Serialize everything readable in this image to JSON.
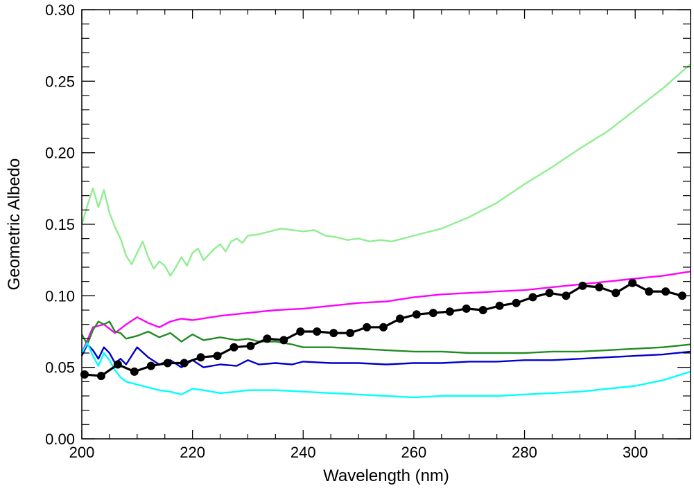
{
  "chart_data": {
    "type": "line",
    "title": "",
    "xlabel": "Wavelength (nm)",
    "ylabel": "Geometric Albedo",
    "xlim": [
      200,
      310
    ],
    "ylim": [
      0.0,
      0.3
    ],
    "x_ticks": [
      200,
      220,
      240,
      260,
      280,
      300
    ],
    "x_tick_labels": [
      "200",
      "220",
      "240",
      "260",
      "280",
      "300"
    ],
    "y_ticks": [
      0.0,
      0.05,
      0.1,
      0.15,
      0.2,
      0.25,
      0.3
    ],
    "y_tick_labels": [
      "0.00",
      "0.05",
      "0.10",
      "0.15",
      "0.20",
      "0.25",
      "0.30"
    ],
    "grid": false,
    "legend": "none",
    "series": [
      {
        "color": "#90ee90",
        "markers": false,
        "x": [
          200,
          201,
          202,
          203,
          204,
          205,
          206,
          207,
          208,
          209,
          210,
          211,
          212,
          213,
          214,
          215,
          216,
          217,
          218,
          219,
          220,
          221,
          222,
          223,
          224,
          225,
          226,
          227,
          228,
          229,
          230,
          232,
          234,
          236,
          238,
          240,
          242,
          244,
          246,
          248,
          250,
          252,
          254,
          256,
          258,
          260,
          265,
          270,
          275,
          280,
          285,
          290,
          295,
          300,
          305,
          310
        ],
        "y": [
          0.15,
          0.163,
          0.175,
          0.162,
          0.174,
          0.158,
          0.148,
          0.14,
          0.128,
          0.122,
          0.13,
          0.138,
          0.127,
          0.119,
          0.124,
          0.121,
          0.114,
          0.12,
          0.127,
          0.121,
          0.13,
          0.133,
          0.125,
          0.129,
          0.133,
          0.136,
          0.131,
          0.138,
          0.14,
          0.137,
          0.142,
          0.143,
          0.145,
          0.147,
          0.146,
          0.145,
          0.146,
          0.142,
          0.141,
          0.139,
          0.14,
          0.138,
          0.139,
          0.138,
          0.14,
          0.142,
          0.147,
          0.155,
          0.165,
          0.178,
          0.19,
          0.203,
          0.215,
          0.23,
          0.245,
          0.262
        ]
      },
      {
        "color": "#ff00ff",
        "markers": false,
        "x": [
          200,
          202,
          204,
          206,
          208,
          210,
          212,
          214,
          216,
          218,
          220,
          225,
          230,
          235,
          240,
          245,
          250,
          255,
          260,
          265,
          270,
          275,
          280,
          285,
          290,
          295,
          300,
          305,
          310
        ],
        "y": [
          0.06,
          0.078,
          0.08,
          0.074,
          0.08,
          0.085,
          0.081,
          0.078,
          0.082,
          0.084,
          0.083,
          0.086,
          0.088,
          0.09,
          0.091,
          0.093,
          0.095,
          0.096,
          0.099,
          0.101,
          0.102,
          0.103,
          0.104,
          0.106,
          0.108,
          0.11,
          0.112,
          0.114,
          0.117
        ]
      },
      {
        "color": "#228b22",
        "markers": false,
        "x": [
          200,
          201,
          202,
          203,
          204,
          205,
          206,
          207,
          208,
          210,
          212,
          214,
          216,
          218,
          220,
          222,
          225,
          228,
          230,
          232,
          235,
          238,
          240,
          245,
          250,
          255,
          260,
          265,
          270,
          275,
          280,
          285,
          290,
          295,
          300,
          305,
          310
        ],
        "y": [
          0.073,
          0.066,
          0.076,
          0.082,
          0.08,
          0.082,
          0.075,
          0.074,
          0.07,
          0.072,
          0.075,
          0.071,
          0.074,
          0.068,
          0.073,
          0.069,
          0.071,
          0.069,
          0.07,
          0.068,
          0.068,
          0.066,
          0.064,
          0.064,
          0.063,
          0.062,
          0.061,
          0.061,
          0.06,
          0.06,
          0.06,
          0.061,
          0.061,
          0.062,
          0.063,
          0.064,
          0.066
        ]
      },
      {
        "color": "#0000cd",
        "markers": false,
        "x": [
          200,
          201,
          202,
          203,
          204,
          205,
          206,
          207,
          208,
          209,
          210,
          212,
          214,
          216,
          218,
          220,
          222,
          225,
          228,
          230,
          232,
          235,
          238,
          240,
          245,
          250,
          255,
          260,
          265,
          270,
          275,
          280,
          285,
          290,
          295,
          300,
          305,
          310
        ],
        "y": [
          0.058,
          0.066,
          0.062,
          0.056,
          0.064,
          0.06,
          0.053,
          0.056,
          0.052,
          0.058,
          0.064,
          0.057,
          0.052,
          0.055,
          0.05,
          0.055,
          0.05,
          0.052,
          0.051,
          0.055,
          0.052,
          0.053,
          0.052,
          0.054,
          0.053,
          0.053,
          0.052,
          0.053,
          0.053,
          0.054,
          0.054,
          0.055,
          0.055,
          0.056,
          0.057,
          0.058,
          0.059,
          0.061
        ]
      },
      {
        "color": "#00ffff",
        "markers": false,
        "x": [
          200,
          201,
          202,
          203,
          204,
          205,
          206,
          207,
          208,
          210,
          212,
          214,
          216,
          218,
          220,
          222,
          225,
          228,
          230,
          235,
          240,
          245,
          250,
          255,
          260,
          265,
          270,
          275,
          280,
          285,
          290,
          295,
          300,
          305,
          310
        ],
        "y": [
          0.06,
          0.067,
          0.058,
          0.051,
          0.06,
          0.055,
          0.048,
          0.043,
          0.04,
          0.038,
          0.036,
          0.034,
          0.033,
          0.031,
          0.035,
          0.034,
          0.032,
          0.033,
          0.034,
          0.034,
          0.033,
          0.032,
          0.031,
          0.03,
          0.029,
          0.03,
          0.03,
          0.03,
          0.031,
          0.032,
          0.033,
          0.035,
          0.037,
          0.041,
          0.047
        ]
      },
      {
        "color": "#000000",
        "markers": true,
        "x": [
          200.5,
          203.5,
          206.5,
          209.5,
          212.5,
          215.5,
          218.5,
          221.5,
          224.5,
          227.5,
          230.5,
          233.5,
          236.5,
          239.5,
          242.5,
          245.5,
          248.5,
          251.5,
          254.5,
          257.5,
          260.5,
          263.5,
          266.5,
          269.5,
          272.5,
          275.5,
          278.5,
          281.5,
          284.5,
          287.5,
          290.5,
          293.5,
          296.5,
          299.5,
          302.5,
          305.5,
          308.5
        ],
        "y": [
          0.045,
          0.044,
          0.052,
          0.047,
          0.051,
          0.053,
          0.053,
          0.057,
          0.058,
          0.064,
          0.065,
          0.07,
          0.069,
          0.075,
          0.075,
          0.074,
          0.074,
          0.078,
          0.078,
          0.084,
          0.087,
          0.088,
          0.089,
          0.091,
          0.09,
          0.093,
          0.095,
          0.099,
          0.102,
          0.1,
          0.107,
          0.106,
          0.102,
          0.109,
          0.103,
          0.103,
          0.1
        ]
      }
    ]
  }
}
